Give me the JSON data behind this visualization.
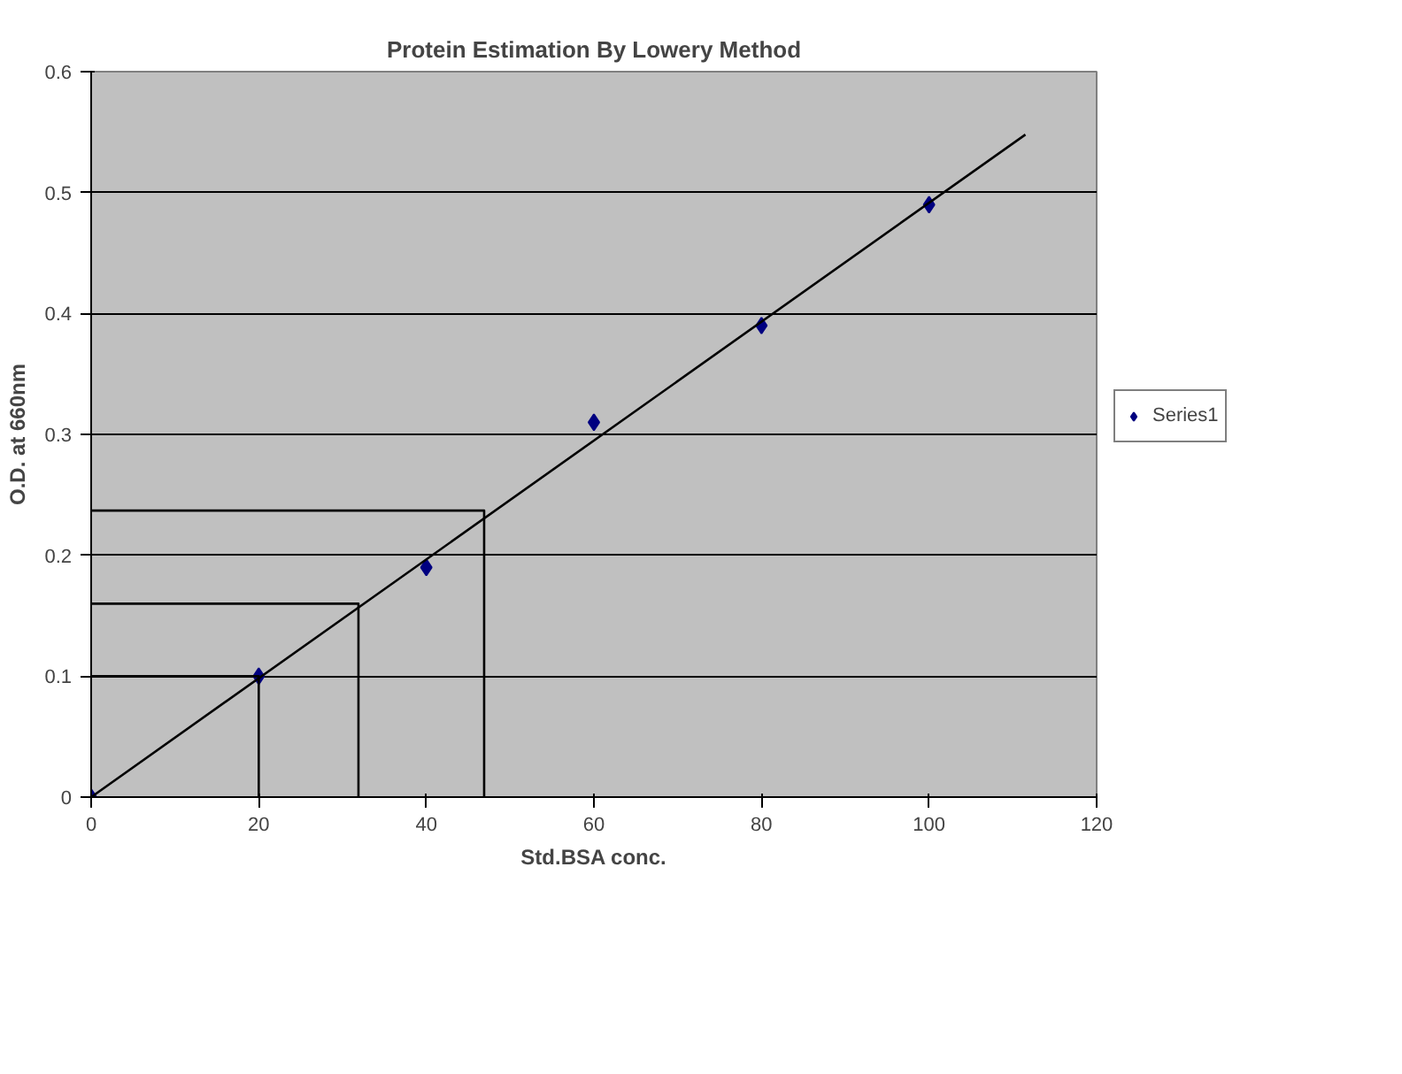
{
  "chart_data": {
    "type": "scatter",
    "title": "Protein Estimation By Lowery Method",
    "xlabel": "Std.BSA conc.",
    "ylabel": "O.D. at 660nm",
    "xlim": [
      0,
      120
    ],
    "xticks": [
      0,
      20,
      40,
      60,
      80,
      100,
      120
    ],
    "ylim": [
      0,
      0.6
    ],
    "yticks": [
      0,
      0.1,
      0.2,
      0.3,
      0.4,
      0.5,
      0.6
    ],
    "grid": "y",
    "legend": "right",
    "marker": "diamond",
    "series": [
      {
        "name": "Series1",
        "color": "#000080",
        "x": [
          0,
          20,
          40,
          60,
          80,
          100
        ],
        "values": [
          0,
          0.1,
          0.19,
          0.31,
          0.39,
          0.49
        ]
      },
      {
        "type": "line",
        "marker": "none",
        "color": "#000000",
        "x": [
          0,
          111.5
        ],
        "values": [
          0,
          0.548
        ]
      },
      {
        "type": "line",
        "marker": "none",
        "color": "#000000",
        "x": [
          0,
          20,
          20
        ],
        "values": [
          0.1,
          0.1,
          0
        ]
      },
      {
        "type": "line",
        "marker": "none",
        "color": "#000000",
        "x": [
          0,
          31.9,
          31.9
        ],
        "values": [
          0.16,
          0.16,
          0
        ]
      },
      {
        "type": "line",
        "marker": "none",
        "color": "#000000",
        "x": [
          0,
          46.9,
          46.9
        ],
        "values": [
          0.237,
          0.237,
          0
        ]
      }
    ]
  }
}
